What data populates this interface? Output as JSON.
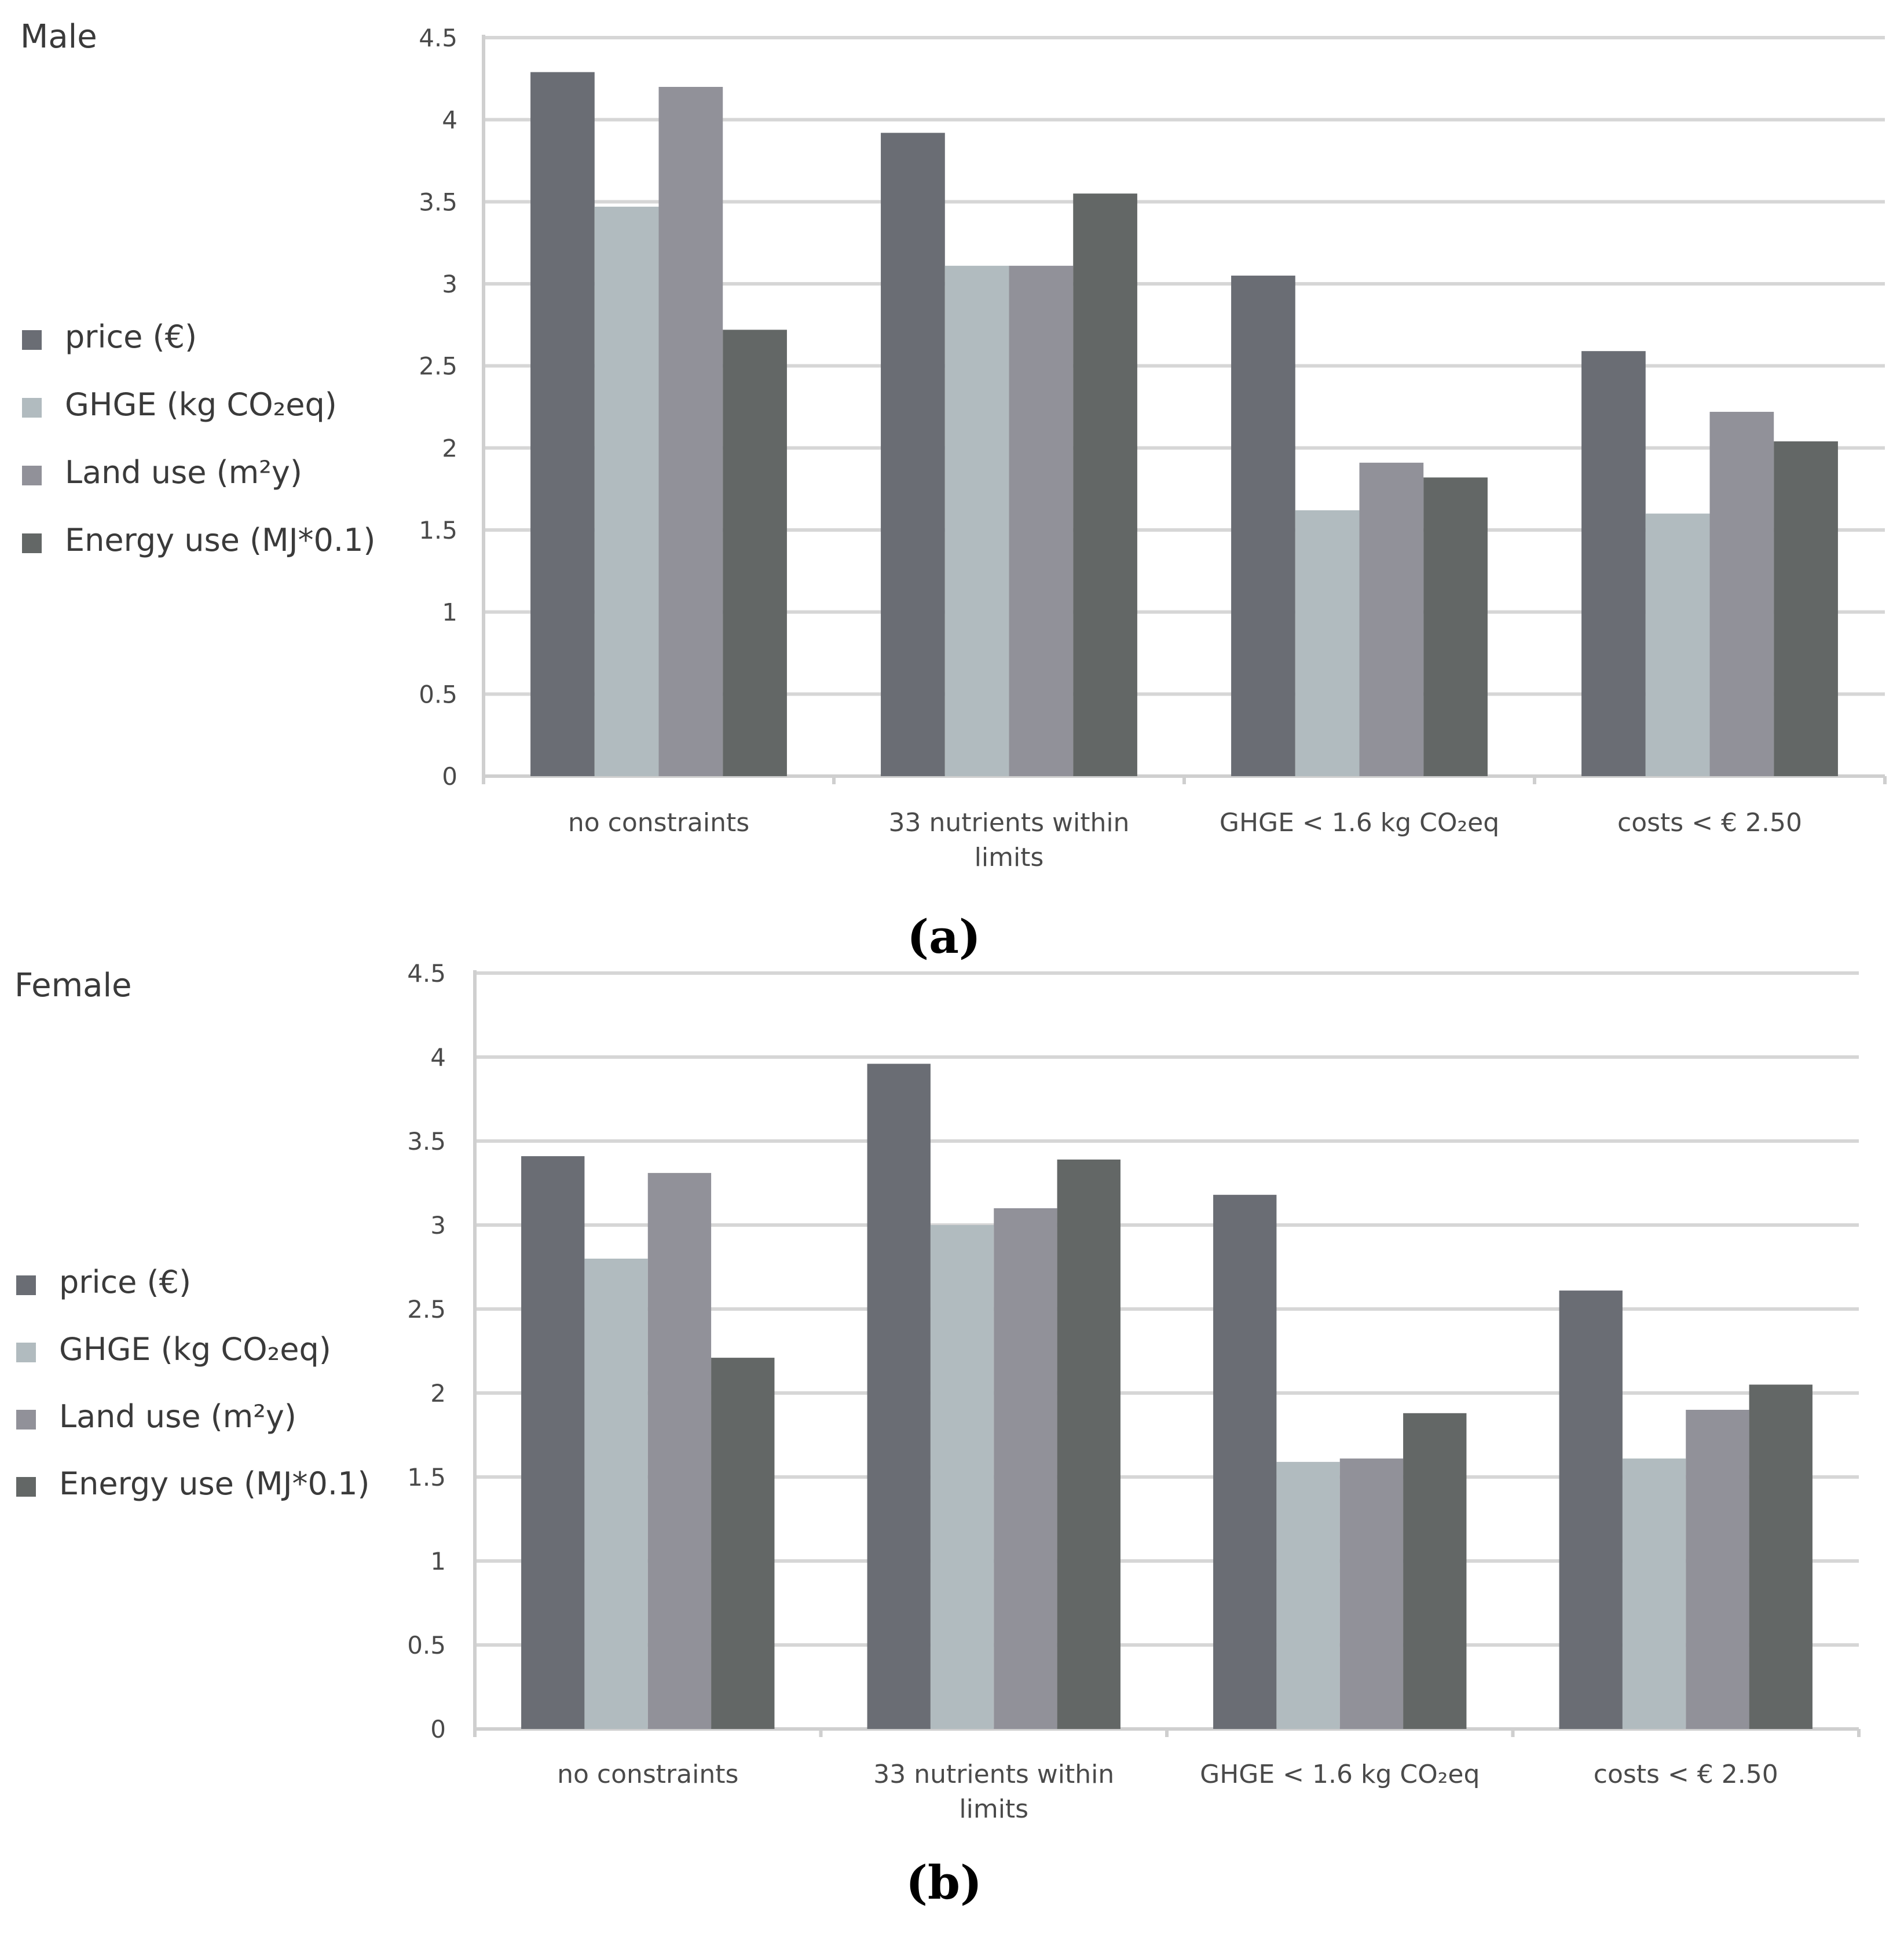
{
  "chart_data": [
    {
      "type": "bar",
      "title": "Male",
      "caption": "(a)",
      "categories": [
        "no constraints",
        "33 nutrients within limits",
        "GHGE < 1.6 kg CO₂eq",
        "costs < € 2.50"
      ],
      "series": [
        {
          "name": "price (€)",
          "color": "#6a6d74",
          "values": [
            4.29,
            3.92,
            3.05,
            2.59
          ]
        },
        {
          "name": "GHGE (kg CO₂eq)",
          "color": "#b1bbbf",
          "values": [
            3.47,
            3.11,
            1.62,
            1.6
          ]
        },
        {
          "name": "Land use (m²y)",
          "color": "#919199",
          "values": [
            4.2,
            3.11,
            1.91,
            2.22
          ]
        },
        {
          "name": "Energy use (MJ*0.1)",
          "color": "#636766",
          "values": [
            2.72,
            3.55,
            1.82,
            2.04
          ]
        }
      ],
      "yticks": [
        "0",
        "0.5",
        "1",
        "1.5",
        "2",
        "2.5",
        "3",
        "3.5",
        "4",
        "4.5"
      ],
      "ylim": [
        0,
        4.5
      ],
      "xlabel": "",
      "ylabel": "",
      "legend": "left",
      "grid": true
    },
    {
      "type": "bar",
      "title": "Female",
      "caption": "(b)",
      "categories": [
        "no constraints",
        "33 nutrients within limits",
        "GHGE < 1.6 kg CO₂eq",
        "costs < € 2.50"
      ],
      "series": [
        {
          "name": "price (€)",
          "color": "#6a6d74",
          "values": [
            3.41,
            3.96,
            3.18,
            2.61
          ]
        },
        {
          "name": "GHGE (kg CO₂eq)",
          "color": "#b1bbbf",
          "values": [
            2.8,
            3.0,
            1.59,
            1.61
          ]
        },
        {
          "name": "Land use (m²y)",
          "color": "#919199",
          "values": [
            3.31,
            3.1,
            1.61,
            1.9
          ]
        },
        {
          "name": "Energy use (MJ*0.1)",
          "color": "#636766",
          "values": [
            2.21,
            3.39,
            1.88,
            2.05
          ]
        }
      ],
      "yticks": [
        "0",
        "0.5",
        "1",
        "1.5",
        "2",
        "2.5",
        "3",
        "3.5",
        "4",
        "4.5"
      ],
      "ylim": [
        0,
        4.5
      ],
      "xlabel": "",
      "ylabel": "",
      "legend": "left",
      "grid": true
    }
  ]
}
